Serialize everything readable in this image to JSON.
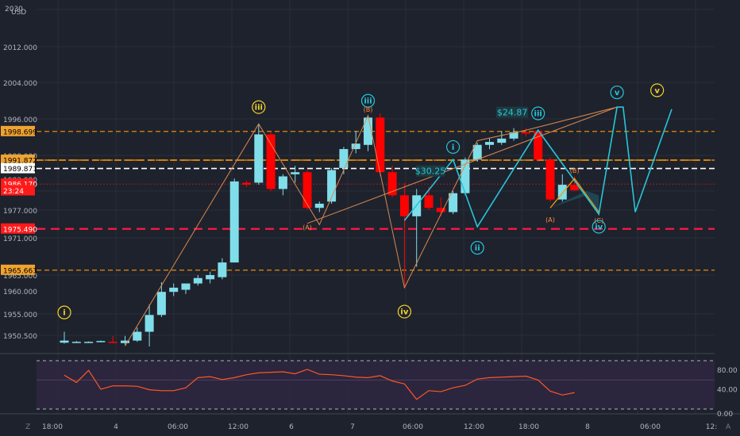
{
  "currency": "USD",
  "top_scale_label": "2030",
  "price_ticks": [
    "2012.000",
    "2004.000",
    "1996.000",
    "1988.000",
    "1983.000",
    "1977.000",
    "1971.000",
    "1965.000",
    "1960.000",
    "1955.000",
    "1950.500"
  ],
  "price_tags": [
    {
      "label": "1998.699",
      "value": 1998.699,
      "kind": "orange"
    },
    {
      "label": "1991.872",
      "value": 1991.872,
      "kind": "orange"
    },
    {
      "label": "1989.871",
      "value": 1989.871,
      "kind": "white"
    },
    {
      "label": "1986.170",
      "value": 1986.17,
      "kind": "red"
    },
    {
      "label": "23:24",
      "value": 1984.6,
      "kind": "red"
    },
    {
      "label": "1975.490",
      "value": 1975.49,
      "kind": "red"
    },
    {
      "label": "1965.663",
      "value": 1965.663,
      "kind": "orange"
    }
  ],
  "time_ticks": [
    "18:00",
    "4",
    "06:00",
    "12:00",
    "6",
    "7",
    "06:00",
    "12:00",
    "18:00",
    "8",
    "06:00",
    "12:"
  ],
  "bottom_left_icon": "Z",
  "bottom_right_icon": "A",
  "rsi_ticks": [
    "80.00",
    "40.00",
    "0.00"
  ],
  "wave_labels": [
    {
      "text": "i",
      "label": "i",
      "color": "#f5d327"
    },
    {
      "text": "iii",
      "label": "iii",
      "color": "#f5d327"
    },
    {
      "text": "iii",
      "label": "iii-top",
      "color": "#26c6da"
    },
    {
      "text": "(B)",
      "label": "B-small",
      "color": "#ff8a3d"
    },
    {
      "text": "i",
      "label": "i-cyan",
      "color": "#26c6da"
    },
    {
      "text": "ii",
      "label": "ii-cyan",
      "color": "#26c6da"
    },
    {
      "text": "iii",
      "label": "iii-cyan",
      "color": "#26c6da"
    },
    {
      "text": "iv",
      "label": "iv",
      "color": "#f5d327"
    },
    {
      "text": "(A)",
      "label": "A1",
      "color": "#ff8a3d"
    },
    {
      "text": "(A)",
      "label": "A2",
      "color": "#ff8a3d"
    },
    {
      "text": "(B)",
      "label": "B2",
      "color": "#ff8a3d"
    },
    {
      "text": "(C)",
      "label": "C2",
      "color": "#ff8a3d"
    },
    {
      "text": "iv",
      "label": "iv-cyan",
      "color": "#26c6da"
    },
    {
      "text": "v",
      "label": "v-cyan",
      "color": "#26c6da"
    },
    {
      "text": "v",
      "label": "v-yellow",
      "color": "#f5d327"
    }
  ],
  "measure_labels": [
    "$24.87",
    "$30.25"
  ],
  "colors": {
    "bg": "#1e222d",
    "up": "#80deea",
    "down": "#ff0000",
    "orange": "#ff9800",
    "red": "#ff1744",
    "cyan": "#26c6da",
    "rsi": "#ff5722",
    "rsi_band": "#2d2640"
  },
  "chart_data": {
    "type": "candlestick",
    "title": "",
    "ylim": [
      1946,
      2030
    ],
    "candles": [
      {
        "i": 0,
        "o": 1948.4,
        "h": 1951.0,
        "l": 1948.2,
        "c": 1948.9
      },
      {
        "i": 1,
        "o": 1948.6,
        "h": 1948.8,
        "l": 1948.4,
        "c": 1948.6
      },
      {
        "i": 2,
        "o": 1948.6,
        "h": 1948.7,
        "l": 1948.5,
        "c": 1948.6
      },
      {
        "i": 3,
        "o": 1948.7,
        "h": 1948.9,
        "l": 1948.5,
        "c": 1948.8
      },
      {
        "i": 4,
        "o": 1948.6,
        "h": 1950.0,
        "l": 1948.5,
        "c": 1948.4
      },
      {
        "i": 5,
        "o": 1948.3,
        "h": 1950.0,
        "l": 1947.9,
        "c": 1948.9
      },
      {
        "i": 6,
        "o": 1948.9,
        "h": 1952.0,
        "l": 1948.6,
        "c": 1951.0
      },
      {
        "i": 7,
        "o": 1951.0,
        "h": 1957.5,
        "l": 1947.5,
        "c": 1955.0
      },
      {
        "i": 8,
        "o": 1955.0,
        "h": 1962.8,
        "l": 1954.5,
        "c": 1960.5
      },
      {
        "i": 9,
        "o": 1960.5,
        "h": 1962.5,
        "l": 1959.5,
        "c": 1961.5
      },
      {
        "i": 10,
        "o": 1961.0,
        "h": 1962.0,
        "l": 1960.0,
        "c": 1962.5
      },
      {
        "i": 11,
        "o": 1962.5,
        "h": 1964.5,
        "l": 1962.0,
        "c": 1963.8
      },
      {
        "i": 12,
        "o": 1963.5,
        "h": 1965.3,
        "l": 1962.5,
        "c": 1964.5
      },
      {
        "i": 13,
        "o": 1964.0,
        "h": 1968.5,
        "l": 1963.5,
        "c": 1967.5
      },
      {
        "i": 14,
        "o": 1967.5,
        "h": 1987.5,
        "l": 1967.5,
        "c": 1986.8
      },
      {
        "i": 15,
        "o": 1986.5,
        "h": 1987.0,
        "l": 1985.5,
        "c": 1986.0
      },
      {
        "i": 16,
        "o": 1986.5,
        "h": 2000.5,
        "l": 1986.0,
        "c": 1998.0
      },
      {
        "i": 17,
        "o": 1998.0,
        "h": 1998.5,
        "l": 1984.5,
        "c": 1985.0
      },
      {
        "i": 18,
        "o": 1985.0,
        "h": 1988.5,
        "l": 1983.5,
        "c": 1988.0
      },
      {
        "i": 19,
        "o": 1988.5,
        "h": 1990.5,
        "l": 1986.5,
        "c": 1989.0
      },
      {
        "i": 20,
        "o": 1989.0,
        "h": 1989.5,
        "l": 1980.0,
        "c": 1980.5
      },
      {
        "i": 21,
        "o": 1980.5,
        "h": 1982.0,
        "l": 1979.5,
        "c": 1981.5
      },
      {
        "i": 22,
        "o": 1982.0,
        "h": 1990.0,
        "l": 1981.5,
        "c": 1989.5
      },
      {
        "i": 23,
        "o": 1990.0,
        "h": 1995.0,
        "l": 1988.5,
        "c": 1994.5
      },
      {
        "i": 24,
        "o": 1994.5,
        "h": 1998.8,
        "l": 1993.5,
        "c": 1995.8
      },
      {
        "i": 25,
        "o": 1995.5,
        "h": 2002.5,
        "l": 1994.0,
        "c": 2002.0
      },
      {
        "i": 26,
        "o": 2002.0,
        "h": 2003.0,
        "l": 1988.0,
        "c": 1989.0
      },
      {
        "i": 27,
        "o": 1989.0,
        "h": 1990.5,
        "l": 1983.0,
        "c": 1983.5
      },
      {
        "i": 28,
        "o": 1983.5,
        "h": 1986.5,
        "l": 1961.5,
        "c": 1978.5
      },
      {
        "i": 29,
        "o": 1978.5,
        "h": 1985.0,
        "l": 1966.5,
        "c": 1983.5
      },
      {
        "i": 30,
        "o": 1983.5,
        "h": 1985.5,
        "l": 1980.0,
        "c": 1980.5
      },
      {
        "i": 31,
        "o": 1980.5,
        "h": 1983.0,
        "l": 1978.5,
        "c": 1979.5
      },
      {
        "i": 32,
        "o": 1979.5,
        "h": 1984.5,
        "l": 1979.0,
        "c": 1984.0
      },
      {
        "i": 33,
        "o": 1984.0,
        "h": 1992.5,
        "l": 1983.5,
        "c": 1992.0
      },
      {
        "i": 34,
        "o": 1992.0,
        "h": 1996.0,
        "l": 1991.5,
        "c": 1995.5
      },
      {
        "i": 35,
        "o": 1995.5,
        "h": 1997.0,
        "l": 1994.5,
        "c": 1996.2
      },
      {
        "i": 36,
        "o": 1996.0,
        "h": 1998.8,
        "l": 1995.5,
        "c": 1997.0
      },
      {
        "i": 37,
        "o": 1997.0,
        "h": 1999.5,
        "l": 1996.5,
        "c": 1998.5
      },
      {
        "i": 38,
        "o": 1998.5,
        "h": 1999.5,
        "l": 1997.5,
        "c": 1998.2
      },
      {
        "i": 39,
        "o": 1998.8,
        "h": 1999.0,
        "l": 1991.5,
        "c": 1992.0
      },
      {
        "i": 40,
        "o": 1992.0,
        "h": 1992.5,
        "l": 1982.0,
        "c": 1982.5
      },
      {
        "i": 41,
        "o": 1982.5,
        "h": 1988.5,
        "l": 1982.0,
        "c": 1986.0
      },
      {
        "i": 42,
        "o": 1986.0,
        "h": 1988.0,
        "l": 1984.5,
        "c": 1984.7
      }
    ],
    "rsi": [
      70,
      55,
      80,
      41,
      48,
      48,
      47,
      40,
      38,
      38,
      44,
      65,
      67,
      61,
      65,
      71,
      75,
      76,
      77,
      73,
      82,
      72,
      71,
      69,
      66,
      65,
      69,
      58,
      52,
      20,
      38,
      36,
      44,
      49,
      62,
      65,
      66,
      67,
      68,
      60,
      37,
      29,
      34
    ],
    "rsi_levels": [
      100,
      60,
      0
    ],
    "lines": {
      "orange_dashed": [
        1998.699,
        1991.872,
        1965.663
      ],
      "white_dashed": [
        1989.871
      ],
      "red_dashed": [
        1975.49
      ]
    }
  }
}
